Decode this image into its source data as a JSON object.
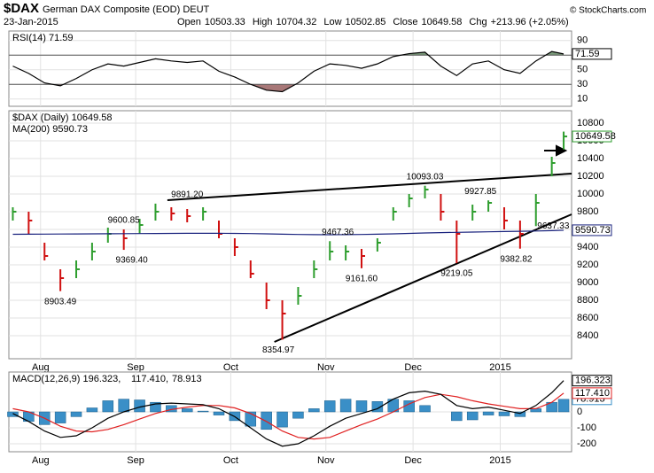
{
  "header": {
    "symbol": "$DAX",
    "name": "German DAX Composite (EOD) DEUT",
    "date": "23-Jan-2015",
    "copyright": "© StockCharts.com",
    "quote": [
      {
        "label": "Open",
        "value": 10503.33
      },
      {
        "label": "High",
        "value": 10704.32
      },
      {
        "label": "Low",
        "value": 10502.85
      },
      {
        "label": "Close",
        "value": 10649.58
      },
      {
        "label": "Chg",
        "value": "+213.96 (+2.05%)"
      }
    ]
  },
  "chart_data": [
    {
      "type": "line",
      "legend": [
        {
          "text": "RSI(14) 71.59",
          "color": "#000000"
        }
      ],
      "x": [
        0,
        4,
        8,
        12,
        16,
        20,
        24,
        28,
        32,
        36,
        40,
        44,
        48,
        52,
        56,
        60,
        64,
        68,
        72,
        76,
        80,
        84,
        88,
        92,
        96,
        100,
        104,
        108,
        112,
        116,
        120,
        124,
        128,
        132,
        136,
        139
      ],
      "xlim": [
        -1,
        141
      ],
      "xticks": [
        {
          "value": 7,
          "label": "Aug"
        },
        {
          "value": 31,
          "label": "Sep"
        },
        {
          "value": 55,
          "label": "Oct"
        },
        {
          "value": 79,
          "label": "Nov"
        },
        {
          "value": 101,
          "label": "Dec"
        },
        {
          "value": 123,
          "label": "2015"
        }
      ],
      "ylim": [
        0,
        103
      ],
      "yticks": [
        10,
        30,
        50,
        70,
        90
      ],
      "overbought": 70,
      "oversold": 30,
      "overbought_color": "#7a9a7a",
      "oversold_color": "#a87878",
      "series": [
        {
          "name": "RSI(14)",
          "kind": "line",
          "color": "#000000",
          "last_label": "71.59",
          "values": [
            55,
            45,
            32,
            28,
            38,
            50,
            58,
            55,
            60,
            65,
            62,
            60,
            62,
            48,
            40,
            30,
            22,
            20,
            32,
            48,
            58,
            56,
            52,
            58,
            68,
            72,
            74,
            55,
            42,
            58,
            62,
            50,
            45,
            62,
            75,
            71.59
          ]
        }
      ]
    },
    {
      "type": "ohlc",
      "legend": [
        {
          "text": "$DAX (Daily) 10649.58",
          "color": "#000000"
        },
        {
          "text": "MA(200) 9590.73",
          "color": "#1a237e"
        }
      ],
      "x": [
        0,
        4,
        8,
        12,
        16,
        20,
        24,
        28,
        32,
        36,
        40,
        44,
        48,
        52,
        56,
        60,
        64,
        68,
        72,
        76,
        80,
        84,
        88,
        92,
        96,
        100,
        104,
        108,
        112,
        116,
        120,
        124,
        128,
        132,
        136,
        139
      ],
      "xlim": [
        -1,
        141
      ],
      "xticks": [
        {
          "value": 7,
          "label": "Aug"
        },
        {
          "value": 31,
          "label": "Sep"
        },
        {
          "value": 55,
          "label": "Oct"
        },
        {
          "value": 79,
          "label": "Nov"
        },
        {
          "value": 101,
          "label": "Dec"
        },
        {
          "value": 123,
          "label": "2015"
        }
      ],
      "xtick_labels": true,
      "ylim": [
        8140,
        10940
      ],
      "yticks": [
        8400,
        8600,
        8800,
        9000,
        9200,
        9400,
        9600,
        9800,
        10000,
        10200,
        10400,
        10600,
        10800
      ],
      "series": [
        {
          "name": "$DAX (Daily)",
          "up_color": "#2e9e2e",
          "down_color": "#d01010",
          "last_label": "10649.58",
          "high": [
            9850,
            9800,
            9450,
            9150,
            9250,
            9450,
            9620,
            9600,
            9720,
            9891.2,
            9850,
            9830,
            9850,
            9700,
            9500,
            9250,
            9000,
            8800,
            8950,
            9250,
            9467.36,
            9420,
            9380,
            9500,
            9850,
            10000,
            10093.03,
            10000,
            9700,
            9880,
            9927.85,
            9850,
            9700,
            10000,
            10420,
            10704.32
          ],
          "low": [
            9700,
            9550,
            9250,
            8903.49,
            9050,
            9250,
            9450,
            9369.4,
            9550,
            9700,
            9700,
            9680,
            9700,
            9500,
            9300,
            9050,
            8700,
            8354.97,
            8750,
            9050,
            9250,
            9250,
            9161.6,
            9350,
            9700,
            9850,
            9950,
            9700,
            9219.05,
            9700,
            9800,
            9600,
            9382.82,
            9637.33,
            10200,
            10502.85
          ],
          "close": [
            9800,
            9700,
            9300,
            9050,
            9150,
            9350,
            9550,
            9500,
            9650,
            9800,
            9780,
            9750,
            9800,
            9550,
            9400,
            9100,
            8800,
            8650,
            8850,
            9150,
            9350,
            9350,
            9300,
            9450,
            9800,
            9950,
            10050,
            9800,
            9550,
            9800,
            9900,
            9700,
            9550,
            9900,
            10350,
            10649.58
          ]
        },
        {
          "name": "MA(200)",
          "kind": "line",
          "color": "#1a237e",
          "last_label": "9590.73",
          "values": [
            9545,
            9546,
            9547,
            9548,
            9549,
            9550,
            9551,
            9552,
            9553,
            9554,
            9555,
            9556,
            9556,
            9556,
            9555,
            9553,
            9550,
            9546,
            9543,
            9541,
            9540,
            9541,
            9543,
            9546,
            9550,
            9555,
            9560,
            9564,
            9567,
            9570,
            9573,
            9576,
            9579,
            9582,
            9586,
            9590.73
          ]
        }
      ],
      "annotations": [
        {
          "x": 12,
          "value": 8903.49,
          "label": "8903.49",
          "position": "below"
        },
        {
          "x": 28,
          "value": 9600.85,
          "label": "9600.85",
          "position": "above"
        },
        {
          "x": 30,
          "value": 9369.4,
          "label": "9369.40",
          "position": "below"
        },
        {
          "x": 44,
          "value": 9891.2,
          "label": "9891.20",
          "position": "above"
        },
        {
          "x": 67,
          "value": 8354.97,
          "label": "8354.97",
          "position": "below"
        },
        {
          "x": 82,
          "value": 9467.36,
          "label": "9467.36",
          "position": "above"
        },
        {
          "x": 88,
          "value": 9161.6,
          "label": "9161.60",
          "position": "below"
        },
        {
          "x": 104,
          "value": 10093.03,
          "label": "10093.03",
          "position": "above"
        },
        {
          "x": 112,
          "value": 9219.05,
          "label": "9219.05",
          "position": "below"
        },
        {
          "x": 118,
          "value": 9927.85,
          "label": "9927.85",
          "position": "above"
        },
        {
          "x": 127,
          "value": 9382.82,
          "label": "9382.82",
          "position": "below"
        },
        {
          "x": 131,
          "value": 9637.33,
          "label": "9637.33",
          "position": "right"
        }
      ],
      "trendlines": [
        {
          "x": [
            39,
            141
          ],
          "values": [
            9930,
            10230
          ]
        },
        {
          "x": [
            66,
            141
          ],
          "values": [
            8330,
            9770
          ]
        }
      ]
    },
    {
      "type": "line",
      "legend": [
        {
          "text": "MACD(12,26,9) 196.323,",
          "color": "#000000"
        },
        {
          "text": "117.410,",
          "color": "#e02020"
        },
        {
          "text": "78.913",
          "color": "#3a8fc7"
        }
      ],
      "x": [
        0,
        4,
        8,
        12,
        16,
        20,
        24,
        28,
        32,
        36,
        40,
        44,
        48,
        52,
        56,
        60,
        64,
        68,
        72,
        76,
        80,
        84,
        88,
        92,
        96,
        100,
        104,
        108,
        112,
        116,
        120,
        124,
        128,
        132,
        136,
        139
      ],
      "xlim": [
        -1,
        141
      ],
      "xticks": [
        {
          "value": 7,
          "label": "Aug"
        },
        {
          "value": 31,
          "label": "Sep"
        },
        {
          "value": 55,
          "label": "Oct"
        },
        {
          "value": 79,
          "label": "Nov"
        },
        {
          "value": 101,
          "label": "Dec"
        },
        {
          "value": 123,
          "label": "2015"
        }
      ],
      "xtick_labels": true,
      "ylim": [
        -250,
        250
      ],
      "yticks": [
        -200,
        -100,
        0
      ],
      "series": [
        {
          "name": "Histogram",
          "kind": "bar",
          "color": "#3a8fc7",
          "last_label": "78.913",
          "values": [
            -30,
            -60,
            -80,
            -70,
            -30,
            25,
            70,
            80,
            75,
            60,
            40,
            20,
            5,
            -20,
            -55,
            -90,
            -110,
            -95,
            -40,
            20,
            70,
            80,
            70,
            65,
            80,
            70,
            40,
            0,
            -55,
            -50,
            -20,
            -25,
            -30,
            20,
            60,
            78.913
          ]
        },
        {
          "name": "Signal",
          "kind": "line",
          "color": "#e02020",
          "last_label": "117.410",
          "values": [
            20,
            0,
            -40,
            -90,
            -120,
            -125,
            -110,
            -80,
            -45,
            -10,
            15,
            30,
            40,
            40,
            25,
            -10,
            -60,
            -120,
            -160,
            -170,
            -160,
            -120,
            -80,
            -45,
            0,
            50,
            90,
            110,
            95,
            70,
            50,
            35,
            20,
            20,
            60,
            117.41
          ]
        },
        {
          "name": "MACD",
          "kind": "line",
          "color": "#000000",
          "last_label": "196.323",
          "values": [
            -10,
            -60,
            -120,
            -160,
            -150,
            -100,
            -40,
            0,
            30,
            50,
            55,
            50,
            45,
            20,
            -30,
            -100,
            -170,
            -215,
            -200,
            -150,
            -90,
            -40,
            -10,
            20,
            80,
            120,
            130,
            110,
            40,
            20,
            30,
            10,
            -10,
            40,
            120,
            196.323
          ]
        }
      ]
    }
  ]
}
